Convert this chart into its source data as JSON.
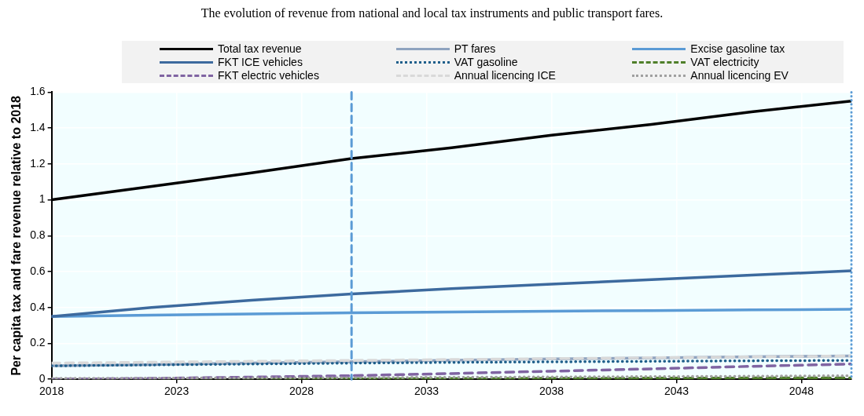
{
  "chart_data": {
    "type": "line",
    "title": "The evolution of revenue from national and local tax instruments and public transport fares.",
    "ylabel": "Per capita tax and fare revenue relative to 2018",
    "x": [
      2018,
      2022,
      2026,
      2030,
      2034,
      2038,
      2042,
      2046,
      2050
    ],
    "series": [
      {
        "name": "Total tax revenue",
        "color": "#000000",
        "line_style": "solid",
        "values": [
          1.0,
          1.075,
          1.15,
          1.23,
          1.29,
          1.36,
          1.42,
          1.49,
          1.55
        ]
      },
      {
        "name": "PT fares",
        "color": "#8fa3bf",
        "line_style": "solid",
        "values": [
          0.075,
          0.082,
          0.09,
          0.098,
          0.106,
          0.113,
          0.119,
          0.125,
          0.13
        ]
      },
      {
        "name": "Excise gasoline tax",
        "color": "#5b9bd5",
        "line_style": "solid",
        "values": [
          0.35,
          0.357,
          0.364,
          0.37,
          0.375,
          0.379,
          0.383,
          0.387,
          0.39
        ]
      },
      {
        "name": "FKT ICE vehicles",
        "color": "#3d6a9e",
        "line_style": "solid",
        "values": [
          0.35,
          0.4,
          0.44,
          0.475,
          0.505,
          0.53,
          0.555,
          0.58,
          0.605
        ]
      },
      {
        "name": "VAT gasoline",
        "color": "#1f5f8b",
        "line_style": "dotted",
        "values": [
          0.075,
          0.08,
          0.085,
          0.09,
          0.094,
          0.097,
          0.1,
          0.103,
          0.105
        ]
      },
      {
        "name": "VAT electricity",
        "color": "#4f7f2a",
        "line_style": "dashed",
        "values": [
          0.0,
          0.001,
          0.002,
          0.003,
          0.004,
          0.005,
          0.006,
          0.007,
          0.008
        ]
      },
      {
        "name": "FKT electric vehicles",
        "color": "#8064a2",
        "line_style": "dashed",
        "values": [
          0.0,
          0.005,
          0.012,
          0.02,
          0.032,
          0.045,
          0.058,
          0.072,
          0.085
        ]
      },
      {
        "name": "Annual licencing ICE",
        "color": "#d9d9d9",
        "line_style": "dashed",
        "values": [
          0.09,
          0.095,
          0.1,
          0.105,
          0.11,
          0.115,
          0.12,
          0.125,
          0.13
        ]
      },
      {
        "name": "Annual licencing EV",
        "color": "#a0a0a0",
        "line_style": "dotted",
        "values": [
          0.005,
          0.006,
          0.008,
          0.009,
          0.011,
          0.013,
          0.015,
          0.017,
          0.02
        ]
      }
    ],
    "xlim": [
      2018,
      2050
    ],
    "xticks": [
      2018,
      2023,
      2028,
      2033,
      2038,
      2043,
      2048
    ],
    "ylim": [
      0,
      1.6
    ],
    "yticks": [
      0,
      0.2,
      0.4,
      0.6,
      0.8,
      1,
      1.2,
      1.4,
      1.6
    ],
    "ref_lines": [
      {
        "axis": "x",
        "value": 2030,
        "color": "#5b9bd5",
        "line_style": "dashed"
      },
      {
        "axis": "x",
        "value": 2050,
        "color": "#5b9bd5",
        "line_style": "dotted"
      }
    ],
    "grid": true,
    "legend": "top",
    "marker": "none"
  }
}
